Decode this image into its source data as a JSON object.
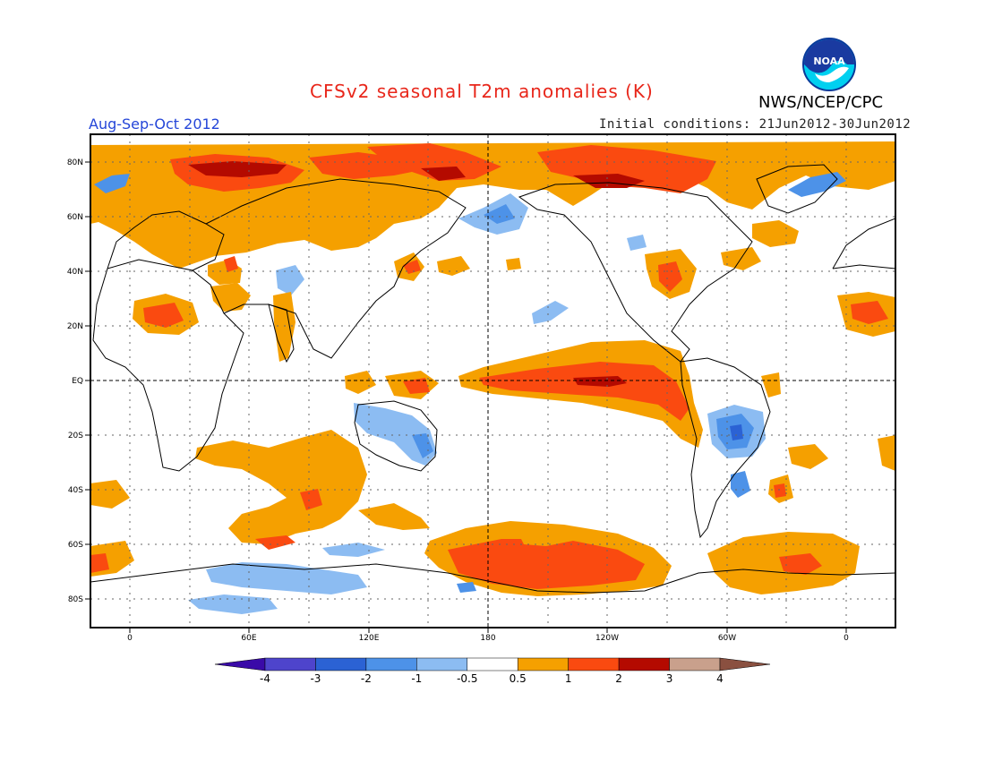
{
  "title": "CFSv2 seasonal T2m anomalies (K)",
  "period": "Aug-Sep-Oct 2012",
  "initial_conditions": "Initial conditions: 21Jun2012-30Jun2012",
  "agency": "NWS/NCEP/CPC",
  "logo_text": "NOAA",
  "lat_labels": [
    "80N",
    "60N",
    "40N",
    "20N",
    "EQ",
    "20S",
    "40S",
    "60S",
    "80S"
  ],
  "lon_labels": [
    "0",
    "60E",
    "120E",
    "180",
    "120W",
    "60W",
    "0"
  ],
  "colorbar": {
    "labels": [
      "-4",
      "-3",
      "-2",
      "-1",
      "-0.5",
      "0.5",
      "1",
      "2",
      "3",
      "4"
    ],
    "colors": [
      "#3a0aa8",
      "#4e44cc",
      "#2b62d4",
      "#4d92e8",
      "#8cbcf2",
      "#ffffff",
      "#f5a000",
      "#fa4a10",
      "#b40a00",
      "#c9a08c",
      "#8a5040"
    ]
  }
}
